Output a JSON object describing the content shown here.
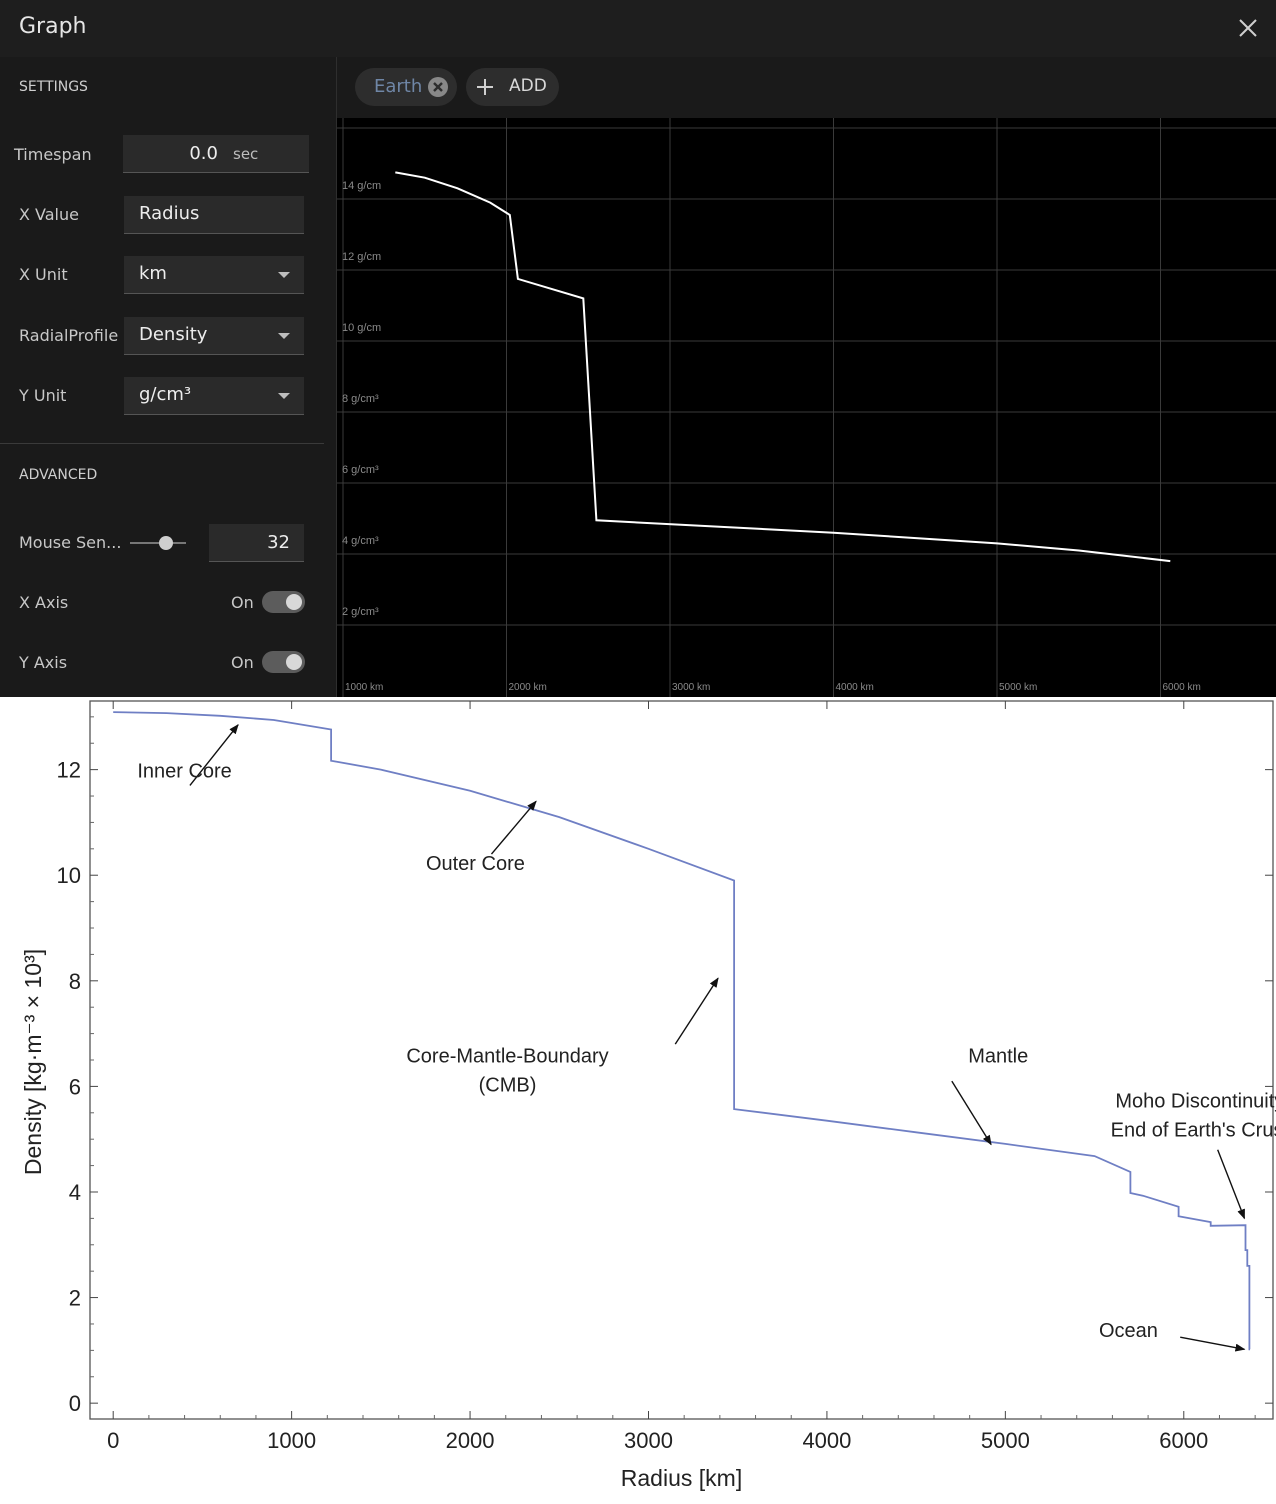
{
  "window": {
    "title": "Graph",
    "close_icon": "close-icon"
  },
  "settings": {
    "header": "SETTINGS",
    "timespan": {
      "label": "Timespan",
      "value": "0.0",
      "unit": "sec"
    },
    "x_value": {
      "label": "X Value",
      "value": "Radius"
    },
    "x_unit": {
      "label": "X Unit",
      "value": "km"
    },
    "radial_profile": {
      "label": "RadialProfile",
      "value": "Density"
    },
    "y_unit": {
      "label": "Y Unit",
      "value": "g/cm³"
    }
  },
  "advanced": {
    "header": "ADVANCED",
    "mouse": {
      "label": "Mouse Sen...",
      "value": "32",
      "level": 0.65
    },
    "x_axis": {
      "label": "X Axis",
      "state": "On"
    },
    "y_axis": {
      "label": "Y Axis",
      "state": "On"
    }
  },
  "chips": {
    "earth": "Earth",
    "add": "ADD"
  },
  "app_graph": {
    "y_ticks": [
      {
        "v": 14,
        "label": "14 g/cm"
      },
      {
        "v": 12,
        "label": "12 g/cm"
      },
      {
        "v": 10,
        "label": "10 g/cm"
      },
      {
        "v": 8,
        "label": "8 g/cm³"
      },
      {
        "v": 6,
        "label": "6 g/cm³"
      },
      {
        "v": 4,
        "label": "4 g/cm³"
      },
      {
        "v": 2,
        "label": "2 g/cm³"
      }
    ],
    "x_ticks": [
      {
        "v": 1000,
        "label": "1000 km"
      },
      {
        "v": 2000,
        "label": "2000 km"
      },
      {
        "v": 3000,
        "label": "3000 km"
      },
      {
        "v": 4000,
        "label": "4000 km"
      },
      {
        "v": 5000,
        "label": "5000 km"
      },
      {
        "v": 6000,
        "label": "6000 km"
      }
    ],
    "line_color": "#ffffff",
    "points": [
      [
        1320,
        14.75
      ],
      [
        1500,
        14.6
      ],
      [
        1700,
        14.3
      ],
      [
        1900,
        13.9
      ],
      [
        2020,
        13.55
      ],
      [
        2070,
        11.75
      ],
      [
        2470,
        11.2
      ],
      [
        2550,
        4.95
      ],
      [
        4000,
        4.6
      ],
      [
        5000,
        4.3
      ],
      [
        5500,
        4.1
      ],
      [
        6060,
        3.8
      ]
    ]
  },
  "chart_data": {
    "type": "line",
    "xlabel": "Radius [km]",
    "ylabel": "Density [kg·m⁻³ × 10³]",
    "xlim": [
      -130,
      6500
    ],
    "ylim": [
      -0.3,
      13.3
    ],
    "x_ticks": [
      0,
      1000,
      2000,
      3000,
      4000,
      5000,
      6000
    ],
    "y_ticks": [
      0,
      2,
      4,
      6,
      8,
      10,
      12
    ],
    "line_color": "#6f7fc4",
    "series": [
      {
        "x": [
          0,
          300,
          600,
          900,
          1221,
          1221,
          1500,
          2000,
          2500,
          3000,
          3480,
          3480,
          4000,
          4500,
          5000,
          5500,
          5701,
          5701,
          5771,
          5971,
          5971,
          6151,
          6151,
          6346,
          6346,
          6356,
          6356,
          6368,
          6368,
          6371
        ],
        "y": [
          13.09,
          13.07,
          13.02,
          12.94,
          12.76,
          12.17,
          12.0,
          11.6,
          11.1,
          10.5,
          9.9,
          5.57,
          5.35,
          5.13,
          4.91,
          4.68,
          4.38,
          3.98,
          3.93,
          3.72,
          3.54,
          3.43,
          3.36,
          3.37,
          2.9,
          2.9,
          2.6,
          2.6,
          1.02,
          1.02
        ]
      }
    ],
    "annotations": [
      {
        "text": "Inner Core",
        "x": 400,
        "y": 11.85,
        "arrow_to": [
          700,
          12.85
        ],
        "arrow_from": [
          430,
          11.7
        ]
      },
      {
        "text": "Outer Core",
        "x": 2030,
        "y": 10.1,
        "arrow_to": [
          2370,
          11.4
        ],
        "arrow_from": [
          2120,
          10.4
        ]
      },
      {
        "text": "Core-Mantle-Boundary",
        "text2": "(CMB)",
        "x": 2210,
        "y": 6.45,
        "arrow_to": [
          3390,
          8.05
        ],
        "arrow_from": [
          3150,
          6.8
        ]
      },
      {
        "text": "Mantle",
        "x": 4960,
        "y": 6.45,
        "arrow_to": [
          4920,
          4.9
        ],
        "arrow_from": [
          4700,
          6.1
        ]
      },
      {
        "text": "Moho Discontinuity",
        "text2": "End of Earth's Crust",
        "x": 6090,
        "y": 5.6,
        "arrow_to": [
          6340,
          3.5
        ],
        "arrow_from": [
          6190,
          4.8
        ]
      },
      {
        "text": "Ocean",
        "x": 5690,
        "y": 1.25,
        "arrow_to": [
          6340,
          1.02
        ],
        "arrow_from": [
          5980,
          1.25
        ]
      }
    ]
  }
}
